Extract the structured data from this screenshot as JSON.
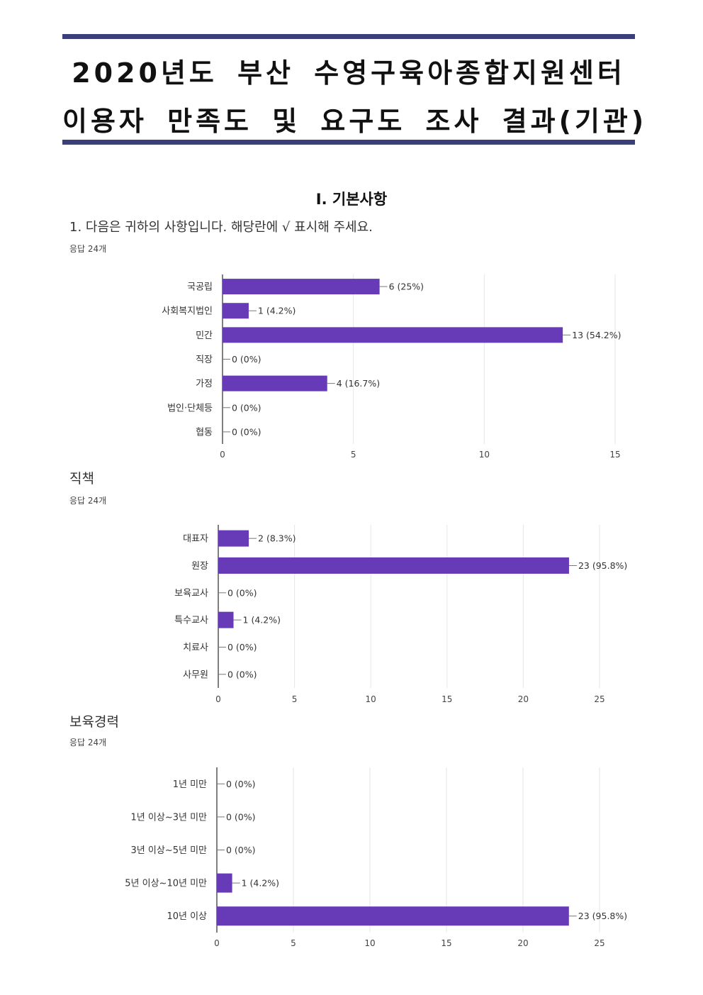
{
  "header": {
    "title_line1": "2020년도 부산 수영구육아종합지원센터",
    "title_line2": "이용자 만족도 및 요구도 조사 결과(기관)"
  },
  "section": {
    "title": "Ⅰ. 기본사항"
  },
  "questions": [
    {
      "label": "1. 다음은 귀하의 사항입니다. 해당란에 √ 표시해 주세요.",
      "responses": "응답 24개"
    },
    {
      "label": "직책",
      "responses": "응답 24개"
    },
    {
      "label": "보육경력",
      "responses": "응답 24개"
    }
  ],
  "chart_data": [
    {
      "type": "bar",
      "orientation": "horizontal",
      "categories": [
        "국공립",
        "사회복지법인",
        "민간",
        "직장",
        "가정",
        "법인·단체등",
        "협동"
      ],
      "values": [
        6,
        1,
        13,
        0,
        4,
        0,
        0
      ],
      "data_labels": [
        "6 (25%)",
        "1 (4.2%)",
        "13 (54.2%)",
        "0 (0%)",
        "4 (16.7%)",
        "0 (0%)",
        "0 (0%)"
      ],
      "xlim": [
        0,
        15
      ],
      "xticks": [
        0,
        5,
        10,
        15
      ],
      "grid": true,
      "color": "#673ab7"
    },
    {
      "type": "bar",
      "orientation": "horizontal",
      "categories": [
        "대표자",
        "원장",
        "보육교사",
        "특수교사",
        "치료사",
        "사무원"
      ],
      "values": [
        2,
        23,
        0,
        1,
        0,
        0
      ],
      "data_labels": [
        "2 (8.3%)",
        "23 (95.8%)",
        "0 (0%)",
        "1 (4.2%)",
        "0 (0%)",
        "0 (0%)"
      ],
      "xlim": [
        0,
        25
      ],
      "xticks": [
        0,
        5,
        10,
        15,
        20,
        25
      ],
      "grid": true,
      "color": "#673ab7"
    },
    {
      "type": "bar",
      "orientation": "horizontal",
      "categories": [
        "1년 미만",
        "1년 이상~3년 미만",
        "3년 이상~5년 미만",
        "5년 이상~10년 미만",
        "10년 이상"
      ],
      "values": [
        0,
        0,
        0,
        1,
        23
      ],
      "data_labels": [
        "0 (0%)",
        "0 (0%)",
        "0 (0%)",
        "1 (4.2%)",
        "23 (95.8%)"
      ],
      "xlim": [
        0,
        25
      ],
      "xticks": [
        0,
        5,
        10,
        15,
        20,
        25
      ],
      "grid": true,
      "color": "#673ab7"
    }
  ]
}
